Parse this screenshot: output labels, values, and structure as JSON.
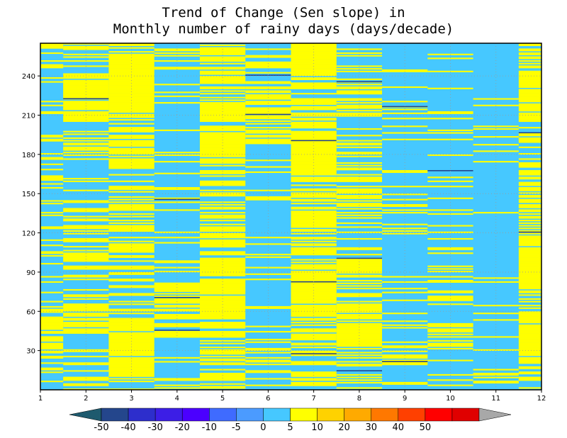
{
  "chart_data": {
    "type": "heatmap",
    "title": [
      "Trend of Change (Sen slope) in",
      "Monthly number of rainy days (days/decade)"
    ],
    "xlabel": "",
    "ylabel": "",
    "x_ticks": [
      1,
      2,
      3,
      4,
      5,
      6,
      7,
      8,
      9,
      10,
      11,
      12
    ],
    "y_ticks": [
      30,
      60,
      90,
      120,
      150,
      180,
      210,
      240
    ],
    "xlim": [
      1,
      12
    ],
    "ylim": [
      0,
      265
    ],
    "grid": true,
    "colorbar": {
      "labels": [
        "-50",
        "-40",
        "-30",
        "-20",
        "-10",
        "-5",
        "0",
        "5",
        "10",
        "20",
        "30",
        "40",
        "50"
      ],
      "colors": [
        "#24468c",
        "#2d2ecc",
        "#3c1ee6",
        "#4b00ff",
        "#3f6bff",
        "#4b9bff",
        "#46c8ff",
        "#ffff00",
        "#ffd200",
        "#ffaa00",
        "#ff7800",
        "#ff4000",
        "#ff0000",
        "#e00000"
      ],
      "under_color": "#1e5a6e",
      "over_color": "#a8a8a8",
      "placement": "bottom"
    },
    "background_value": "-5 to 0",
    "months": [
      {
        "month": 1,
        "x_range": [
          1,
          1.5
        ],
        "positive_fraction": 0.28,
        "negative_rows": [],
        "dense_positive_ranges": [
          [
            25,
            55
          ]
        ]
      },
      {
        "month": 2,
        "x_range": [
          1.5,
          2.5
        ],
        "positive_fraction": 0.35,
        "negative_rows": [
          222
        ],
        "dense_positive_ranges": [
          [
            45,
            65
          ],
          [
            205,
            235
          ]
        ]
      },
      {
        "month": 3,
        "x_range": [
          2.5,
          3.5
        ],
        "positive_fraction": 0.55,
        "negative_rows": [],
        "dense_positive_ranges": [
          [
            10,
            55
          ],
          [
            215,
            255
          ]
        ]
      },
      {
        "month": 4,
        "x_range": [
          3.5,
          4.5
        ],
        "positive_fraction": 0.18,
        "negative_rows": [
          45,
          70,
          145
        ],
        "dense_positive_ranges": [
          [
            40,
            80
          ]
        ]
      },
      {
        "month": 5,
        "x_range": [
          4.5,
          5.5
        ],
        "positive_fraction": 0.6,
        "negative_rows": [],
        "dense_positive_ranges": [
          [
            55,
            100
          ],
          [
            180,
            200
          ],
          [
            235,
            255
          ]
        ]
      },
      {
        "month": 6,
        "x_range": [
          5.5,
          6.5
        ],
        "positive_fraction": 0.2,
        "negative_rows": [
          210,
          240
        ],
        "dense_positive_ranges": [
          [
            190,
            235
          ]
        ]
      },
      {
        "month": 7,
        "x_range": [
          6.5,
          7.5
        ],
        "positive_fraction": 0.65,
        "negative_rows": [
          27,
          82,
          190
        ],
        "dense_positive_ranges": [
          [
            55,
            100
          ],
          [
            120,
            135
          ],
          [
            165,
            210
          ],
          [
            240,
            265
          ]
        ]
      },
      {
        "month": 8,
        "x_range": [
          7.5,
          8.5
        ],
        "positive_fraction": 0.42,
        "negative_rows": [
          14,
          100,
          235
        ],
        "dense_positive_ranges": [
          [
            35,
            65
          ],
          [
            90,
            100
          ]
        ]
      },
      {
        "month": 9,
        "x_range": [
          8.5,
          9.5
        ],
        "positive_fraction": 0.12,
        "negative_rows": [
          21,
          216
        ],
        "dense_positive_ranges": [
          [
            20,
            30
          ]
        ]
      },
      {
        "month": 10,
        "x_range": [
          9.5,
          10.5
        ],
        "positive_fraction": 0.18,
        "negative_rows": [
          167
        ],
        "dense_positive_ranges": [
          [
            30,
            50
          ],
          [
            65,
            75
          ]
        ]
      },
      {
        "month": 11,
        "x_range": [
          10.5,
          11.5
        ],
        "positive_fraction": 0.06,
        "negative_rows": [],
        "dense_positive_ranges": [
          [
            5,
            15
          ]
        ]
      },
      {
        "month": 12,
        "x_range": [
          11.5,
          12
        ],
        "positive_fraction": 0.5,
        "negative_rows": [
          120,
          196
        ],
        "dense_positive_ranges": [
          [
            20,
            60
          ],
          [
            75,
            115
          ],
          [
            205,
            240
          ]
        ]
      }
    ]
  }
}
